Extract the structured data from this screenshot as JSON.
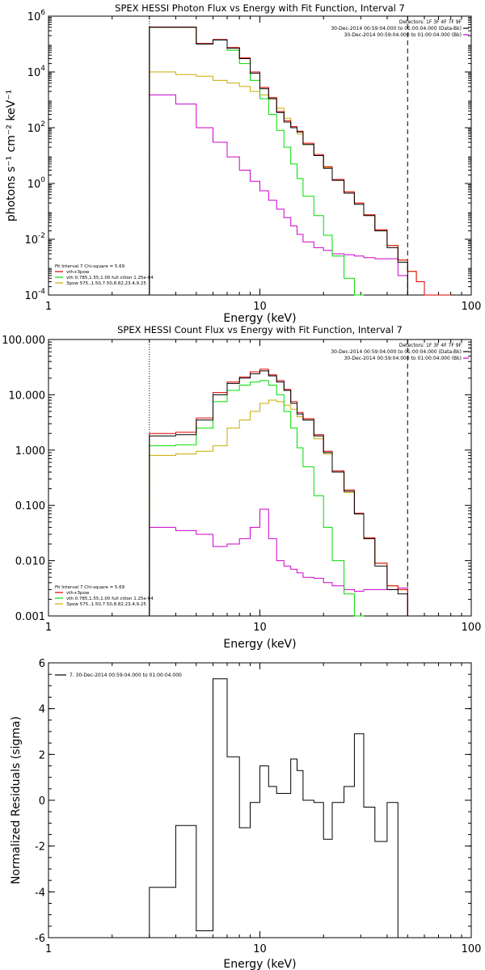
{
  "chart_data": [
    {
      "type": "line",
      "title": "SPEX HESSI Photon Flux vs Energy with Fit Function, Interval 7",
      "xlabel": "Energy (keV)",
      "ylabel": "photons s⁻¹ cm⁻² keV⁻¹",
      "xscale": "log",
      "yscale": "log",
      "xlim": [
        1,
        100
      ],
      "ylim": [
        0.0001,
        1000000
      ],
      "x_ticklabels": [
        "1",
        "10",
        "100"
      ],
      "y_ticks": [
        {
          "value": 1000000,
          "mant": "10",
          "exp": "6"
        },
        {
          "value": 10000,
          "mant": "10",
          "exp": "4"
        },
        {
          "value": 100,
          "mant": "10",
          "exp": "2"
        },
        {
          "value": 1,
          "mant": "10",
          "exp": "0"
        },
        {
          "value": 0.01,
          "mant": "10",
          "exp": "-2"
        },
        {
          "value": 0.0001,
          "mant": "10",
          "exp": "-4"
        }
      ],
      "dotted_line_x": 3,
      "dashed_line_x": 50,
      "legend_right": [
        {
          "text": "Detectors: 1F 3F 4F 7F 9F",
          "color": ""
        },
        {
          "text": "30-Dec-2014 00:59:04.000 to 01:00:04.000 (Data-Bk)",
          "color": "#000000"
        },
        {
          "text": "30-Dec-2014 00:59:04.000 to 01:00:04.000 (Bk)",
          "color": "#cc00cc"
        }
      ],
      "legend_left": [
        {
          "text": "Fit Interval 7   Chi-square = 5.69",
          "color": ""
        },
        {
          "text": "vth+3pow",
          "color": "#dd0000"
        },
        {
          "text": "vth 0.785,1.55,1.00  full ctilon 1.25e-04",
          "color": "#00dd00"
        },
        {
          "text": "3pow 575.,1.50,7.50,8.82,23.4,9.25",
          "color": "#ccaa00"
        }
      ],
      "bin_edges": [
        3,
        4,
        5,
        6,
        7,
        8,
        9,
        10,
        11,
        12,
        13,
        14,
        15,
        16,
        18,
        20,
        22,
        25,
        28,
        31,
        35,
        40,
        45,
        50,
        55,
        60,
        70,
        80
      ],
      "series": [
        {
          "name": "Data-Bk",
          "color": "#000000",
          "values": [
            400000,
            400000,
            100000,
            140000,
            70000,
            30000,
            9000,
            2500,
            1100,
            350,
            160,
            100,
            70,
            25,
            10,
            3.5,
            1.3,
            0.45,
            0.18,
            0.07,
            0.02,
            0.005,
            0.0015
          ]
        },
        {
          "name": "vth+3pow",
          "color": "#dd0000",
          "values": [
            410000,
            410000,
            105000,
            145000,
            75000,
            32000,
            10000,
            2800,
            1200,
            380,
            180,
            110,
            75,
            28,
            11,
            4,
            1.4,
            0.5,
            0.2,
            0.075,
            0.022,
            0.006,
            0.0018,
            0.0007,
            0.0003,
            0.0001,
            4e-05
          ]
        },
        {
          "name": "vth",
          "color": "#00dd00",
          "values": [
            400000,
            400000,
            100000,
            140000,
            60000,
            20000,
            5000,
            1100,
            300,
            80,
            20,
            5,
            1.5,
            0.35,
            0.07,
            0.014,
            0.0025,
            0.0004,
            6e-05
          ]
        },
        {
          "name": "3pow",
          "color": "#ccaa00",
          "values": [
            10000,
            8000,
            7000,
            5000,
            4000,
            3000,
            2000,
            1500,
            1100,
            500,
            220,
            100,
            60,
            25,
            10,
            3.8,
            1.4,
            0.5,
            0.2,
            0.075,
            0.022,
            0.006,
            0.0018,
            0.0007,
            0.0003,
            0.0001,
            4e-05
          ]
        },
        {
          "name": "Bk",
          "color": "#cc00cc",
          "values": [
            1500,
            700,
            100,
            30,
            9,
            3,
            1.2,
            0.55,
            0.25,
            0.12,
            0.06,
            0.03,
            0.015,
            0.008,
            0.005,
            0.004,
            0.003,
            0.0028,
            0.0025,
            0.0022,
            0.002,
            0.002,
            0.0005
          ]
        }
      ]
    },
    {
      "type": "line",
      "title": "SPEX HESSI Count Flux vs Energy with Fit Function, Interval 7",
      "xlabel": "Energy (keV)",
      "ylabel": "",
      "xscale": "log",
      "yscale": "log",
      "xlim": [
        1,
        100
      ],
      "ylim": [
        0.001,
        100
      ],
      "x_ticklabels": [
        "1",
        "10",
        "100"
      ],
      "y_ticks": [
        {
          "value": 100,
          "label": "100.000"
        },
        {
          "value": 10,
          "label": "10.000"
        },
        {
          "value": 1,
          "label": "1.000"
        },
        {
          "value": 0.1,
          "label": "0.100"
        },
        {
          "value": 0.01,
          "label": "0.010"
        },
        {
          "value": 0.001,
          "label": "0.001"
        }
      ],
      "dotted_line_x": 3,
      "dashed_line_x": 50,
      "legend_right": [
        {
          "text": "Detectors: 1F 3F 4F 7F 9F",
          "color": ""
        },
        {
          "text": "30-Dec-2014 00:59:04.000 to 01:00:04.000 (Data-Bk)",
          "color": "#000000"
        },
        {
          "text": "30-Dec-2014 00:59:04.000 to 01:00:04.000 (Bk)",
          "color": "#cc00cc"
        }
      ],
      "legend_left": [
        {
          "text": "Fit Interval 7   Chi-square = 5.69",
          "color": ""
        },
        {
          "text": "vth+3pow",
          "color": "#dd0000"
        },
        {
          "text": "vth 0.785,1.55,1.00  full ctilon 1.25e-04",
          "color": "#00dd00"
        },
        {
          "text": "3pow 575.,1.50,7.50,8.82,23.4,9.25",
          "color": "#ccaa00"
        }
      ],
      "bin_edges": [
        3,
        4,
        5,
        6,
        7,
        8,
        9,
        10,
        11,
        12,
        13,
        14,
        15,
        16,
        18,
        20,
        22,
        25,
        28,
        31,
        35,
        40,
        45,
        50
      ],
      "series": [
        {
          "name": "Data-Bk",
          "color": "#000000",
          "values": [
            1.8,
            1.9,
            3.5,
            10,
            16,
            20,
            24,
            27,
            22,
            17,
            12,
            7,
            4.5,
            3.5,
            1.8,
            0.9,
            0.4,
            0.18,
            0.07,
            0.025,
            0.008,
            0.003,
            0.0025
          ]
        },
        {
          "name": "vth+3pow",
          "color": "#dd0000",
          "values": [
            2,
            2.1,
            3.8,
            11,
            17,
            21,
            26,
            29,
            23,
            18,
            12.5,
            7.5,
            4.8,
            3.7,
            1.9,
            0.95,
            0.42,
            0.19,
            0.072,
            0.026,
            0.009,
            0.0035,
            0.003
          ]
        },
        {
          "name": "vth",
          "color": "#00dd00",
          "values": [
            1.2,
            1.25,
            2.5,
            7.5,
            12,
            15,
            17,
            18,
            15,
            10,
            5,
            2.5,
            1.1,
            0.5,
            0.15,
            0.04,
            0.01,
            0.0025,
            0.0006
          ]
        },
        {
          "name": "3pow",
          "color": "#ccaa00",
          "values": [
            0.8,
            0.85,
            0.95,
            1.2,
            2.5,
            3.5,
            5,
            7,
            8,
            7.5,
            6.5,
            5.5,
            4,
            3.5,
            1.6,
            0.85,
            0.4,
            0.17,
            0.07,
            0.025,
            0.009,
            0.0035,
            0.003
          ]
        },
        {
          "name": "Bk",
          "color": "#cc00cc",
          "values": [
            0.04,
            0.035,
            0.03,
            0.018,
            0.02,
            0.025,
            0.04,
            0.085,
            0.025,
            0.01,
            0.008,
            0.007,
            0.006,
            0.005,
            0.0048,
            0.004,
            0.0035,
            0.003,
            0.0028,
            0.003,
            0.003,
            0.003,
            0.0032
          ]
        }
      ]
    },
    {
      "type": "line",
      "title": "",
      "xlabel": "Energy (keV)",
      "ylabel": "Normalized Residuals (sigma)",
      "xscale": "log",
      "yscale": "linear",
      "xlim": [
        1,
        100
      ],
      "ylim": [
        -6,
        6
      ],
      "x_ticklabels": [
        "1",
        "10",
        "100"
      ],
      "y_ticks": [
        {
          "value": 6,
          "label": "6"
        },
        {
          "value": 4,
          "label": "4"
        },
        {
          "value": 2,
          "label": "2"
        },
        {
          "value": 0,
          "label": "0"
        },
        {
          "value": -2,
          "label": "-2"
        },
        {
          "value": -4,
          "label": "-4"
        },
        {
          "value": -6,
          "label": "-6"
        }
      ],
      "legend_right": [],
      "legend_left": [
        {
          "text": "7. 30-Dec-2014 00:59:04.000 to 01:00:04.000",
          "color": "#000000"
        }
      ],
      "bin_edges": [
        3,
        4,
        5,
        6,
        7,
        8,
        9,
        10,
        11,
        12,
        13,
        14,
        15,
        16,
        18,
        20,
        22,
        25,
        28,
        31,
        35,
        40,
        45,
        50
      ],
      "series": [
        {
          "name": "7. 30-Dec-2014 00:59:04.000 to 01:00:04.000",
          "color": "#000000",
          "values": [
            -3.8,
            -1.1,
            -5.7,
            5.3,
            1.9,
            -1.2,
            -0.1,
            1.5,
            0.6,
            0.3,
            0.3,
            1.8,
            1.3,
            0,
            -0.1,
            -1.7,
            -0.1,
            0.6,
            2.9,
            -0.3,
            -1.8,
            -0.1
          ]
        }
      ]
    }
  ]
}
